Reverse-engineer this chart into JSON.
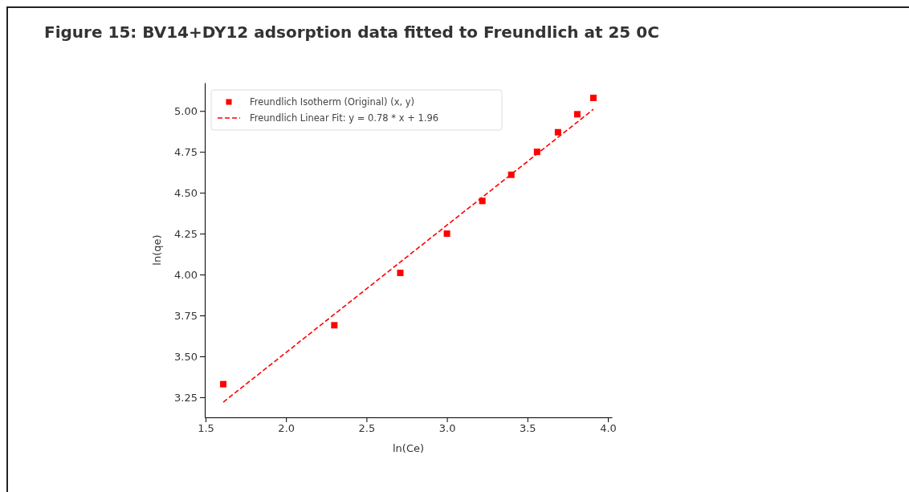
{
  "chart_data": {
    "type": "scatter",
    "title": "Figure 15: BV14+DY12 adsorption data fitted to Freundlich at 25 0C",
    "xlabel": "ln(Ce)",
    "ylabel": "ln(qe)",
    "x": [
      1.61,
      2.3,
      2.71,
      3.0,
      3.22,
      3.4,
      3.56,
      3.69,
      3.81,
      3.91
    ],
    "series": [
      {
        "name": "Freundlich Isotherm (Original) (x, y)",
        "marker": "square",
        "color": "#ff0000",
        "values": [
          3.33,
          3.69,
          4.01,
          4.25,
          4.45,
          4.61,
          4.75,
          4.87,
          4.98,
          5.08
        ]
      },
      {
        "name": "Freundlich Linear Fit: y = 0.78 * x + 1.96",
        "type": "line",
        "line_style": "dashed",
        "marker": "none",
        "color": "#ff0000",
        "x": [
          1.61,
          3.91
        ],
        "values": [
          3.22,
          5.01
        ]
      }
    ],
    "xlim": [
      1.495,
      4.025
    ],
    "xticks": [
      {
        "value": 1.5,
        "label": "1.5"
      },
      {
        "value": 2,
        "label": "2.0"
      },
      {
        "value": 2.5,
        "label": "2.5"
      },
      {
        "value": 3,
        "label": "3.0"
      },
      {
        "value": 3.5,
        "label": "3.5"
      },
      {
        "value": 4,
        "label": "4.0"
      }
    ],
    "ylim": [
      3.127,
      5.173
    ],
    "yticks": [
      {
        "value": 3.25,
        "label": "3.25"
      },
      {
        "value": 3.5,
        "label": "3.50"
      },
      {
        "value": 3.75,
        "label": "3.75"
      },
      {
        "value": 4,
        "label": "4.00"
      },
      {
        "value": 4.25,
        "label": "4.25"
      },
      {
        "value": 4.5,
        "label": "4.50"
      },
      {
        "value": 4.75,
        "label": "4.75"
      },
      {
        "value": 5,
        "label": "5.00"
      }
    ],
    "grid": false,
    "legend": "top left"
  }
}
